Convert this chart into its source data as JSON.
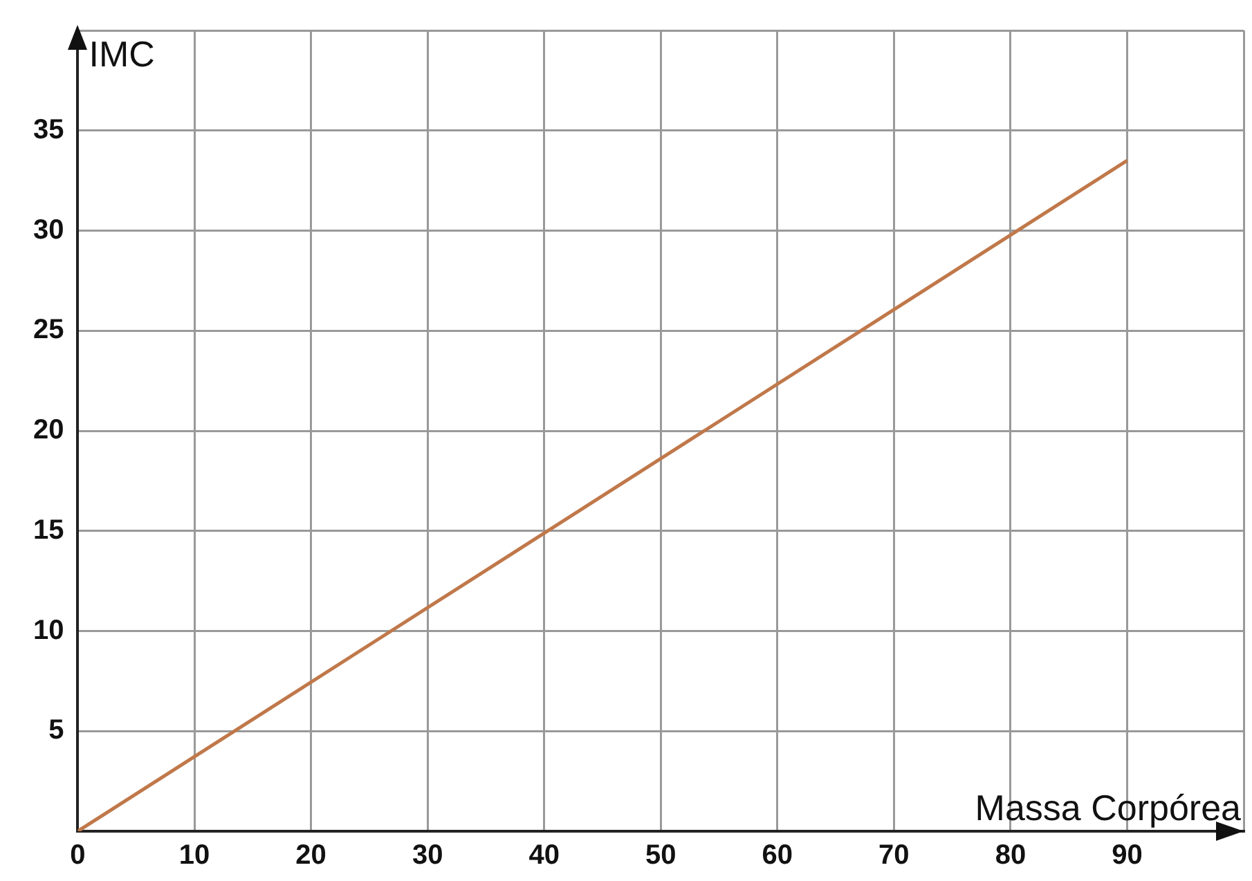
{
  "chart_data": {
    "type": "line",
    "xlabel": "Massa Corpórea",
    "ylabel": "IMC",
    "x": [
      0,
      90
    ],
    "series": [
      {
        "color": "#c0784a",
        "values": [
          0,
          33.5
        ]
      }
    ],
    "xlim": [
      0,
      100
    ],
    "xticks": [
      0,
      10,
      20,
      30,
      40,
      50,
      60,
      70,
      80,
      90,
      {
        "value": 100,
        "label": null
      }
    ],
    "ylim": [
      0,
      40
    ],
    "yticks": [
      {
        "value": 0,
        "label": null
      },
      5,
      10,
      15,
      20,
      25,
      30,
      35,
      {
        "value": 40,
        "label": null
      }
    ],
    "grid": true,
    "legend": false,
    "marker": "none",
    "line_style": "solid"
  }
}
